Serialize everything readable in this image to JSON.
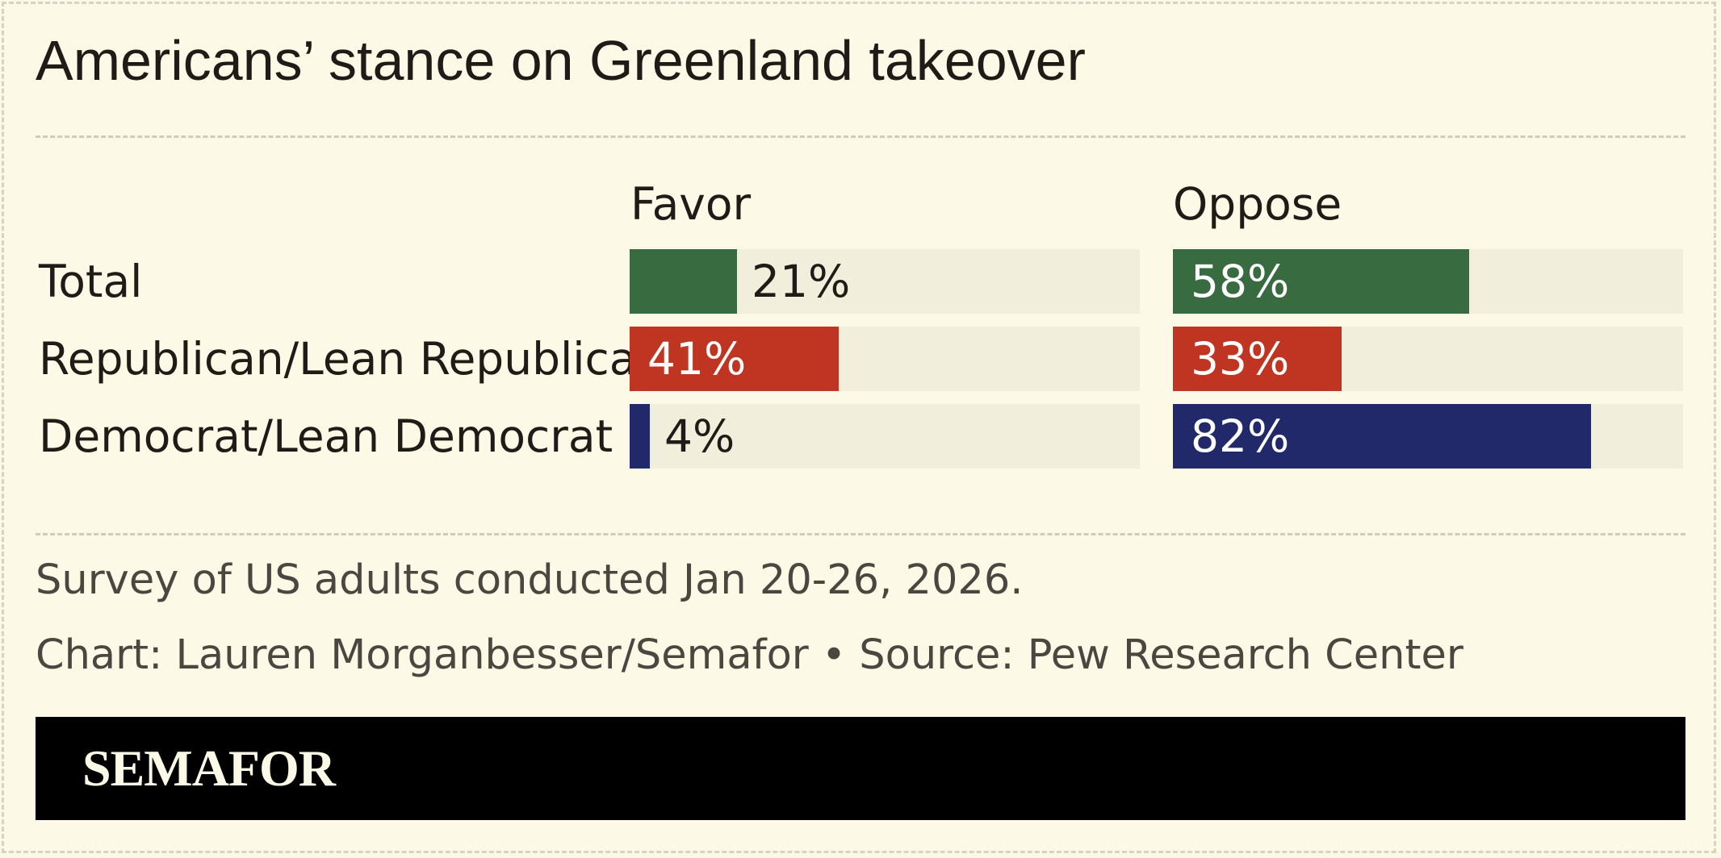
{
  "chart_data": {
    "type": "bar",
    "title": "Americans’ stance on Greenland takeover",
    "categories": [
      "Total",
      "Republican/Lean Republican",
      "Democrat/Lean Democrat"
    ],
    "series": [
      {
        "name": "Favor",
        "values": [
          21,
          41,
          4
        ]
      },
      {
        "name": "Oppose",
        "values": [
          58,
          33,
          82
        ]
      }
    ],
    "value_labels": {
      "Favor": [
        "21%",
        "41%",
        "4%"
      ],
      "Oppose": [
        "58%",
        "33%",
        "82%"
      ]
    },
    "ylim": [
      0,
      100
    ],
    "row_colors": [
      "#386b40",
      "#c03522",
      "#21296a"
    ],
    "track_color": "#f1eedb"
  },
  "notes": {
    "survey": "Survey of US adults conducted Jan 20-26, 2026.",
    "credit": "Chart: Lauren Morganbesser/Semafor • Source: Pew Research Center"
  },
  "footer": {
    "logo_text": "SEMAFOR"
  },
  "colors": {
    "background": "#fcf9e6",
    "footer": "#000000",
    "logo": "#fcf9e6"
  }
}
